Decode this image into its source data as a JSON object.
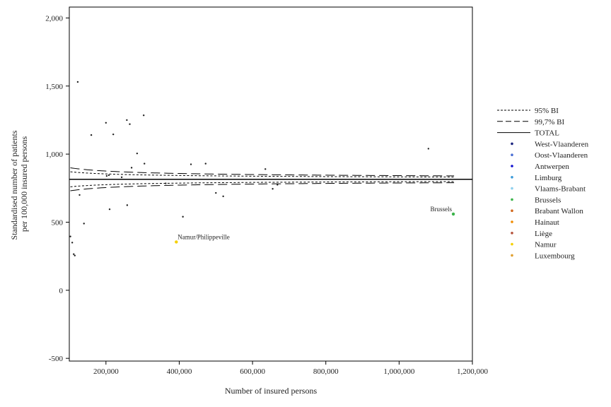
{
  "chart_data": {
    "type": "scatter",
    "xlabel": "Number of insured persons",
    "ylabel_lines": [
      "Standardised number of patients",
      "per 100,000 insured persons"
    ],
    "xlim": [
      100000,
      1200000
    ],
    "ylim": [
      -520,
      2080
    ],
    "x_ticks": [
      {
        "value": 200000,
        "label": "200,000"
      },
      {
        "value": 400000,
        "label": "400,000"
      },
      {
        "value": 600000,
        "label": "600,000"
      },
      {
        "value": 800000,
        "label": "800,000"
      },
      {
        "value": 1000000,
        "label": "1,000,000"
      },
      {
        "value": 1200000,
        "label": "1,200,000"
      }
    ],
    "y_ticks": [
      {
        "value": -500,
        "label": "-500"
      },
      {
        "value": 0,
        "label": "0"
      },
      {
        "value": 500,
        "label": "500"
      },
      {
        "value": 1000,
        "label": "1,000"
      },
      {
        "value": 1500,
        "label": "1,500"
      },
      {
        "value": 2000,
        "label": "2,000"
      }
    ],
    "total": 815,
    "legend": [
      {
        "label": "95% BI",
        "kind": "short-dash"
      },
      {
        "label": "99,7% BI",
        "kind": "long-dash"
      },
      {
        "label": "TOTAL",
        "kind": "solid"
      },
      {
        "label": "West-Vlaanderen",
        "kind": "dot",
        "color": "#1a237e"
      },
      {
        "label": "Oost-Vlaanderen",
        "kind": "dot",
        "color": "#4a6fd4"
      },
      {
        "label": "Antwerpen",
        "kind": "dot",
        "color": "#1010d0"
      },
      {
        "label": "Limburg",
        "kind": "dot",
        "color": "#3a9ad9"
      },
      {
        "label": "Vlaams-Brabant",
        "kind": "dot",
        "color": "#8fd0ee"
      },
      {
        "label": "Brussels",
        "kind": "dot",
        "color": "#3cb44b"
      },
      {
        "label": "Brabant Wallon",
        "kind": "dot",
        "color": "#d2691e"
      },
      {
        "label": "Hainaut",
        "kind": "dot",
        "color": "#f08c00"
      },
      {
        "label": "Liège",
        "kind": "dot",
        "color": "#b5533c"
      },
      {
        "label": "Namur",
        "kind": "dot",
        "color": "#f5d000"
      },
      {
        "label": "Luxembourg",
        "kind": "dot",
        "color": "#e0a030"
      }
    ],
    "annotations": [
      {
        "text": "Brussels",
        "x": 1148000,
        "y": 560
      },
      {
        "text": "Namur/Philippeville",
        "x": 392000,
        "y": 355
      }
    ],
    "points": [
      {
        "x": 103000,
        "y": 395
      },
      {
        "x": 108000,
        "y": 350
      },
      {
        "x": 112000,
        "y": 265
      },
      {
        "x": 115000,
        "y": 255
      },
      {
        "x": 123000,
        "y": 1530
      },
      {
        "x": 128000,
        "y": 700
      },
      {
        "x": 140000,
        "y": 490
      },
      {
        "x": 160000,
        "y": 1140
      },
      {
        "x": 200000,
        "y": 1230
      },
      {
        "x": 202000,
        "y": 840
      },
      {
        "x": 208000,
        "y": 845
      },
      {
        "x": 210000,
        "y": 595
      },
      {
        "x": 220000,
        "y": 1145
      },
      {
        "x": 243000,
        "y": 830
      },
      {
        "x": 257000,
        "y": 1250
      },
      {
        "x": 258000,
        "y": 625
      },
      {
        "x": 265000,
        "y": 1220
      },
      {
        "x": 270000,
        "y": 900
      },
      {
        "x": 285000,
        "y": 1005
      },
      {
        "x": 303000,
        "y": 1285
      },
      {
        "x": 305000,
        "y": 930
      },
      {
        "x": 363000,
        "y": 785
      },
      {
        "x": 392000,
        "y": 355,
        "color": "#f5d000"
      },
      {
        "x": 410000,
        "y": 540
      },
      {
        "x": 432000,
        "y": 925
      },
      {
        "x": 472000,
        "y": 930
      },
      {
        "x": 500000,
        "y": 715
      },
      {
        "x": 520000,
        "y": 690
      },
      {
        "x": 635000,
        "y": 890
      },
      {
        "x": 655000,
        "y": 745
      },
      {
        "x": 668000,
        "y": 775
      },
      {
        "x": 1080000,
        "y": 1040
      },
      {
        "x": 1148000,
        "y": 560,
        "color": "#3cb44b"
      }
    ]
  }
}
